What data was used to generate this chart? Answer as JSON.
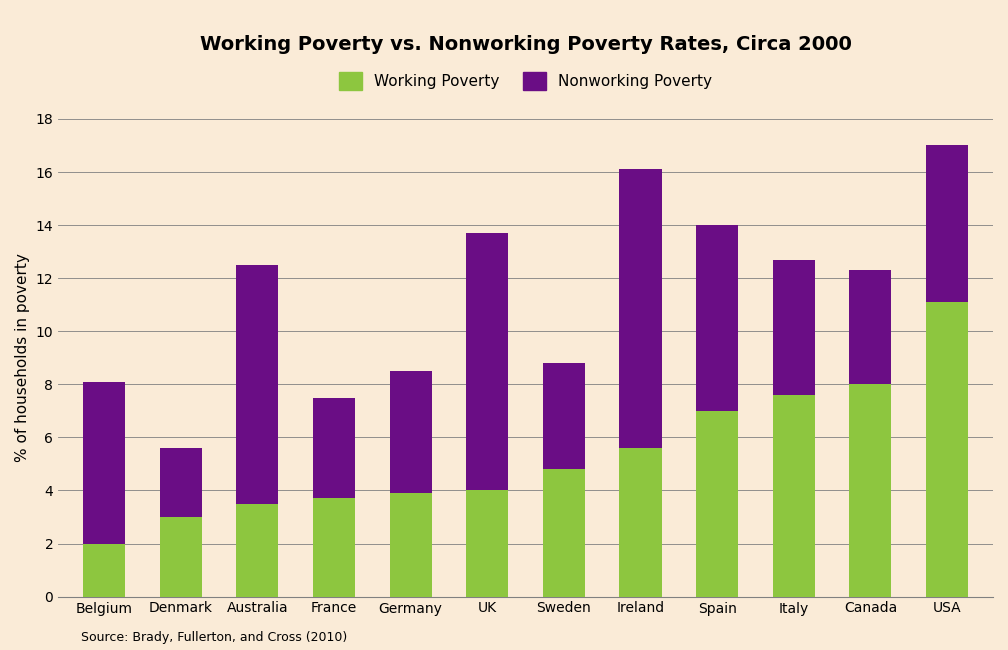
{
  "title": "Working Poverty vs. Nonworking Poverty Rates, Circa 2000",
  "ylabel": "% of households in poverty",
  "source": "Source: Brady, Fullerton, and Cross (2010)",
  "countries": [
    "Belgium",
    "Denmark",
    "Australia",
    "France",
    "Germany",
    "UK",
    "Sweden",
    "Ireland",
    "Spain",
    "Italy",
    "Canada",
    "USA"
  ],
  "working_poverty": [
    2.0,
    3.0,
    3.5,
    3.7,
    3.9,
    4.0,
    4.8,
    5.6,
    7.0,
    7.6,
    8.0,
    11.1
  ],
  "nonworking_poverty": [
    6.1,
    2.6,
    9.0,
    3.8,
    4.6,
    9.7,
    4.0,
    10.5,
    7.0,
    5.1,
    4.3,
    5.9
  ],
  "working_color": "#8dc63f",
  "nonworking_color": "#6a0d85",
  "background_color": "#faebd7",
  "ylim": [
    0,
    18
  ],
  "yticks": [
    0,
    2,
    4,
    6,
    8,
    10,
    12,
    14,
    16,
    18
  ],
  "legend_working": "Working Poverty",
  "legend_nonworking": "Nonworking Poverty",
  "title_fontsize": 14,
  "axis_label_fontsize": 11,
  "tick_fontsize": 10,
  "source_fontsize": 9,
  "bar_width": 0.55
}
